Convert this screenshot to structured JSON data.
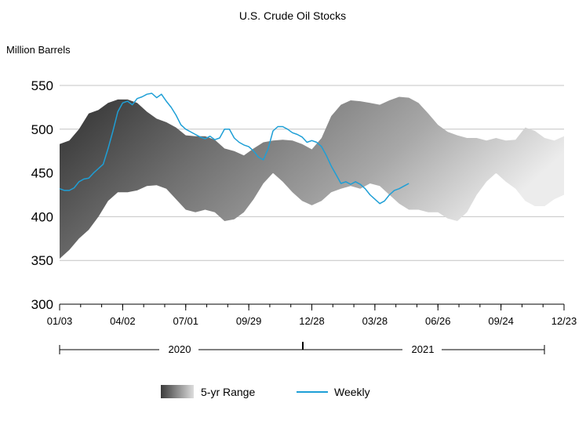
{
  "chart_data": {
    "type": "area",
    "title": "U.S. Crude Oil Stocks",
    "unit_label": "Million Barrels",
    "ylim": [
      300,
      550
    ],
    "y_ticks": [
      "550",
      "500",
      "450",
      "400",
      "350",
      "300"
    ],
    "x_tick_labels": [
      "01/03",
      "04/02",
      "07/01",
      "09/29",
      "12/28",
      "03/28",
      "06/26",
      "09/24",
      "12/23"
    ],
    "years": [
      "2020",
      "2021"
    ],
    "grid": true,
    "legend_position": "bottom",
    "week_count": 104,
    "range_knots": [
      [
        0,
        352,
        483
      ],
      [
        2,
        362,
        487
      ],
      [
        4,
        375,
        500
      ],
      [
        6,
        385,
        518
      ],
      [
        8,
        400,
        522
      ],
      [
        10,
        418,
        530
      ],
      [
        12,
        428,
        534
      ],
      [
        14,
        428,
        534
      ],
      [
        16,
        430,
        530
      ],
      [
        18,
        435,
        520
      ],
      [
        20,
        436,
        512
      ],
      [
        22,
        432,
        508
      ],
      [
        24,
        420,
        502
      ],
      [
        26,
        408,
        493
      ],
      [
        28,
        405,
        492
      ],
      [
        30,
        408,
        492
      ],
      [
        32,
        405,
        488
      ],
      [
        34,
        395,
        478
      ],
      [
        36,
        397,
        475
      ],
      [
        38,
        405,
        470
      ],
      [
        40,
        420,
        478
      ],
      [
        42,
        438,
        485
      ],
      [
        44,
        450,
        487
      ],
      [
        46,
        440,
        488
      ],
      [
        48,
        428,
        487
      ],
      [
        50,
        418,
        483
      ],
      [
        52,
        413,
        477
      ],
      [
        54,
        418,
        490
      ],
      [
        56,
        428,
        515
      ],
      [
        58,
        432,
        528
      ],
      [
        60,
        435,
        533
      ],
      [
        62,
        432,
        532
      ],
      [
        64,
        438,
        530
      ],
      [
        66,
        435,
        528
      ],
      [
        68,
        425,
        533
      ],
      [
        70,
        415,
        537
      ],
      [
        72,
        408,
        536
      ],
      [
        74,
        408,
        530
      ],
      [
        76,
        405,
        518
      ],
      [
        78,
        405,
        505
      ],
      [
        80,
        398,
        497
      ],
      [
        82,
        395,
        493
      ],
      [
        84,
        405,
        490
      ],
      [
        86,
        425,
        490
      ],
      [
        88,
        440,
        487
      ],
      [
        90,
        450,
        490
      ],
      [
        92,
        440,
        487
      ],
      [
        94,
        432,
        488
      ],
      [
        96,
        418,
        502
      ],
      [
        98,
        412,
        498
      ],
      [
        100,
        412,
        490
      ],
      [
        102,
        420,
        487
      ],
      [
        104,
        425,
        492
      ]
    ],
    "series": [
      {
        "name": "Weekly",
        "color": "#1e9fd6",
        "points": [
          [
            0,
            432
          ],
          [
            1,
            430
          ],
          [
            2,
            430
          ],
          [
            3,
            433
          ],
          [
            4,
            440
          ],
          [
            5,
            443
          ],
          [
            6,
            444
          ],
          [
            7,
            450
          ],
          [
            8,
            455
          ],
          [
            9,
            460
          ],
          [
            10,
            478
          ],
          [
            11,
            498
          ],
          [
            12,
            520
          ],
          [
            13,
            530
          ],
          [
            14,
            532
          ],
          [
            15,
            528
          ],
          [
            16,
            535
          ],
          [
            17,
            537
          ],
          [
            18,
            540
          ],
          [
            19,
            541
          ],
          [
            20,
            536
          ],
          [
            21,
            540
          ],
          [
            22,
            532
          ],
          [
            23,
            525
          ],
          [
            24,
            516
          ],
          [
            25,
            505
          ],
          [
            26,
            500
          ],
          [
            27,
            497
          ],
          [
            28,
            494
          ],
          [
            29,
            491
          ],
          [
            30,
            489
          ],
          [
            31,
            492
          ],
          [
            32,
            488
          ],
          [
            33,
            490
          ],
          [
            34,
            500
          ],
          [
            35,
            500
          ],
          [
            36,
            490
          ],
          [
            37,
            485
          ],
          [
            38,
            482
          ],
          [
            39,
            480
          ],
          [
            40,
            475
          ],
          [
            41,
            468
          ],
          [
            42,
            465
          ],
          [
            43,
            478
          ],
          [
            44,
            498
          ],
          [
            45,
            503
          ],
          [
            46,
            503
          ],
          [
            47,
            500
          ],
          [
            48,
            496
          ],
          [
            49,
            494
          ],
          [
            50,
            491
          ],
          [
            51,
            485
          ],
          [
            52,
            487
          ],
          [
            53,
            485
          ],
          [
            54,
            480
          ],
          [
            55,
            470
          ],
          [
            56,
            458
          ],
          [
            57,
            448
          ],
          [
            58,
            438
          ],
          [
            59,
            440
          ],
          [
            60,
            437
          ],
          [
            61,
            440
          ],
          [
            62,
            437
          ],
          [
            63,
            432
          ],
          [
            64,
            425
          ],
          [
            65,
            420
          ],
          [
            66,
            415
          ],
          [
            67,
            418
          ],
          [
            68,
            425
          ],
          [
            69,
            430
          ],
          [
            70,
            432
          ],
          [
            71,
            435
          ],
          [
            72,
            438
          ]
        ]
      }
    ],
    "legend": [
      {
        "label": "5-yr Range",
        "kind": "range"
      },
      {
        "label": "Weekly",
        "kind": "line"
      }
    ]
  }
}
